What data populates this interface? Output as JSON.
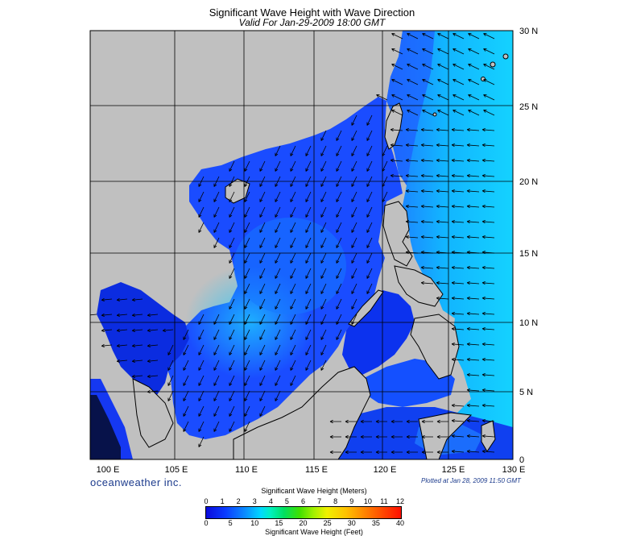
{
  "header": {
    "title": "Significant Wave Height with Wave Direction",
    "subtitle": "Valid For Jan-29-2009 18:00 GMT"
  },
  "map": {
    "lon_labels": [
      "100 E",
      "105 E",
      "110 E",
      "115 E",
      "120 E",
      "125 E",
      "130 E"
    ],
    "lat_labels": [
      "30 N",
      "25 N",
      "20 N",
      "15 N",
      "10 N",
      "5 N",
      "0"
    ],
    "land_color": "#c0c0c0",
    "grid_color": "#000000"
  },
  "footer": {
    "brand": "oceanweather inc.",
    "plotted": "Plotted at Jan 28, 2009 11:50 GMT"
  },
  "legend": {
    "meters_title": "Significant Wave Height (Meters)",
    "meters_ticks": [
      "0",
      "1",
      "2",
      "3",
      "4",
      "5",
      "6",
      "7",
      "8",
      "9",
      "10",
      "11",
      "12"
    ],
    "feet_ticks": [
      "0",
      "5",
      "10",
      "15",
      "20",
      "25",
      "30",
      "35",
      "40"
    ],
    "feet_title": "Significant Wave Height (Feet)"
  }
}
